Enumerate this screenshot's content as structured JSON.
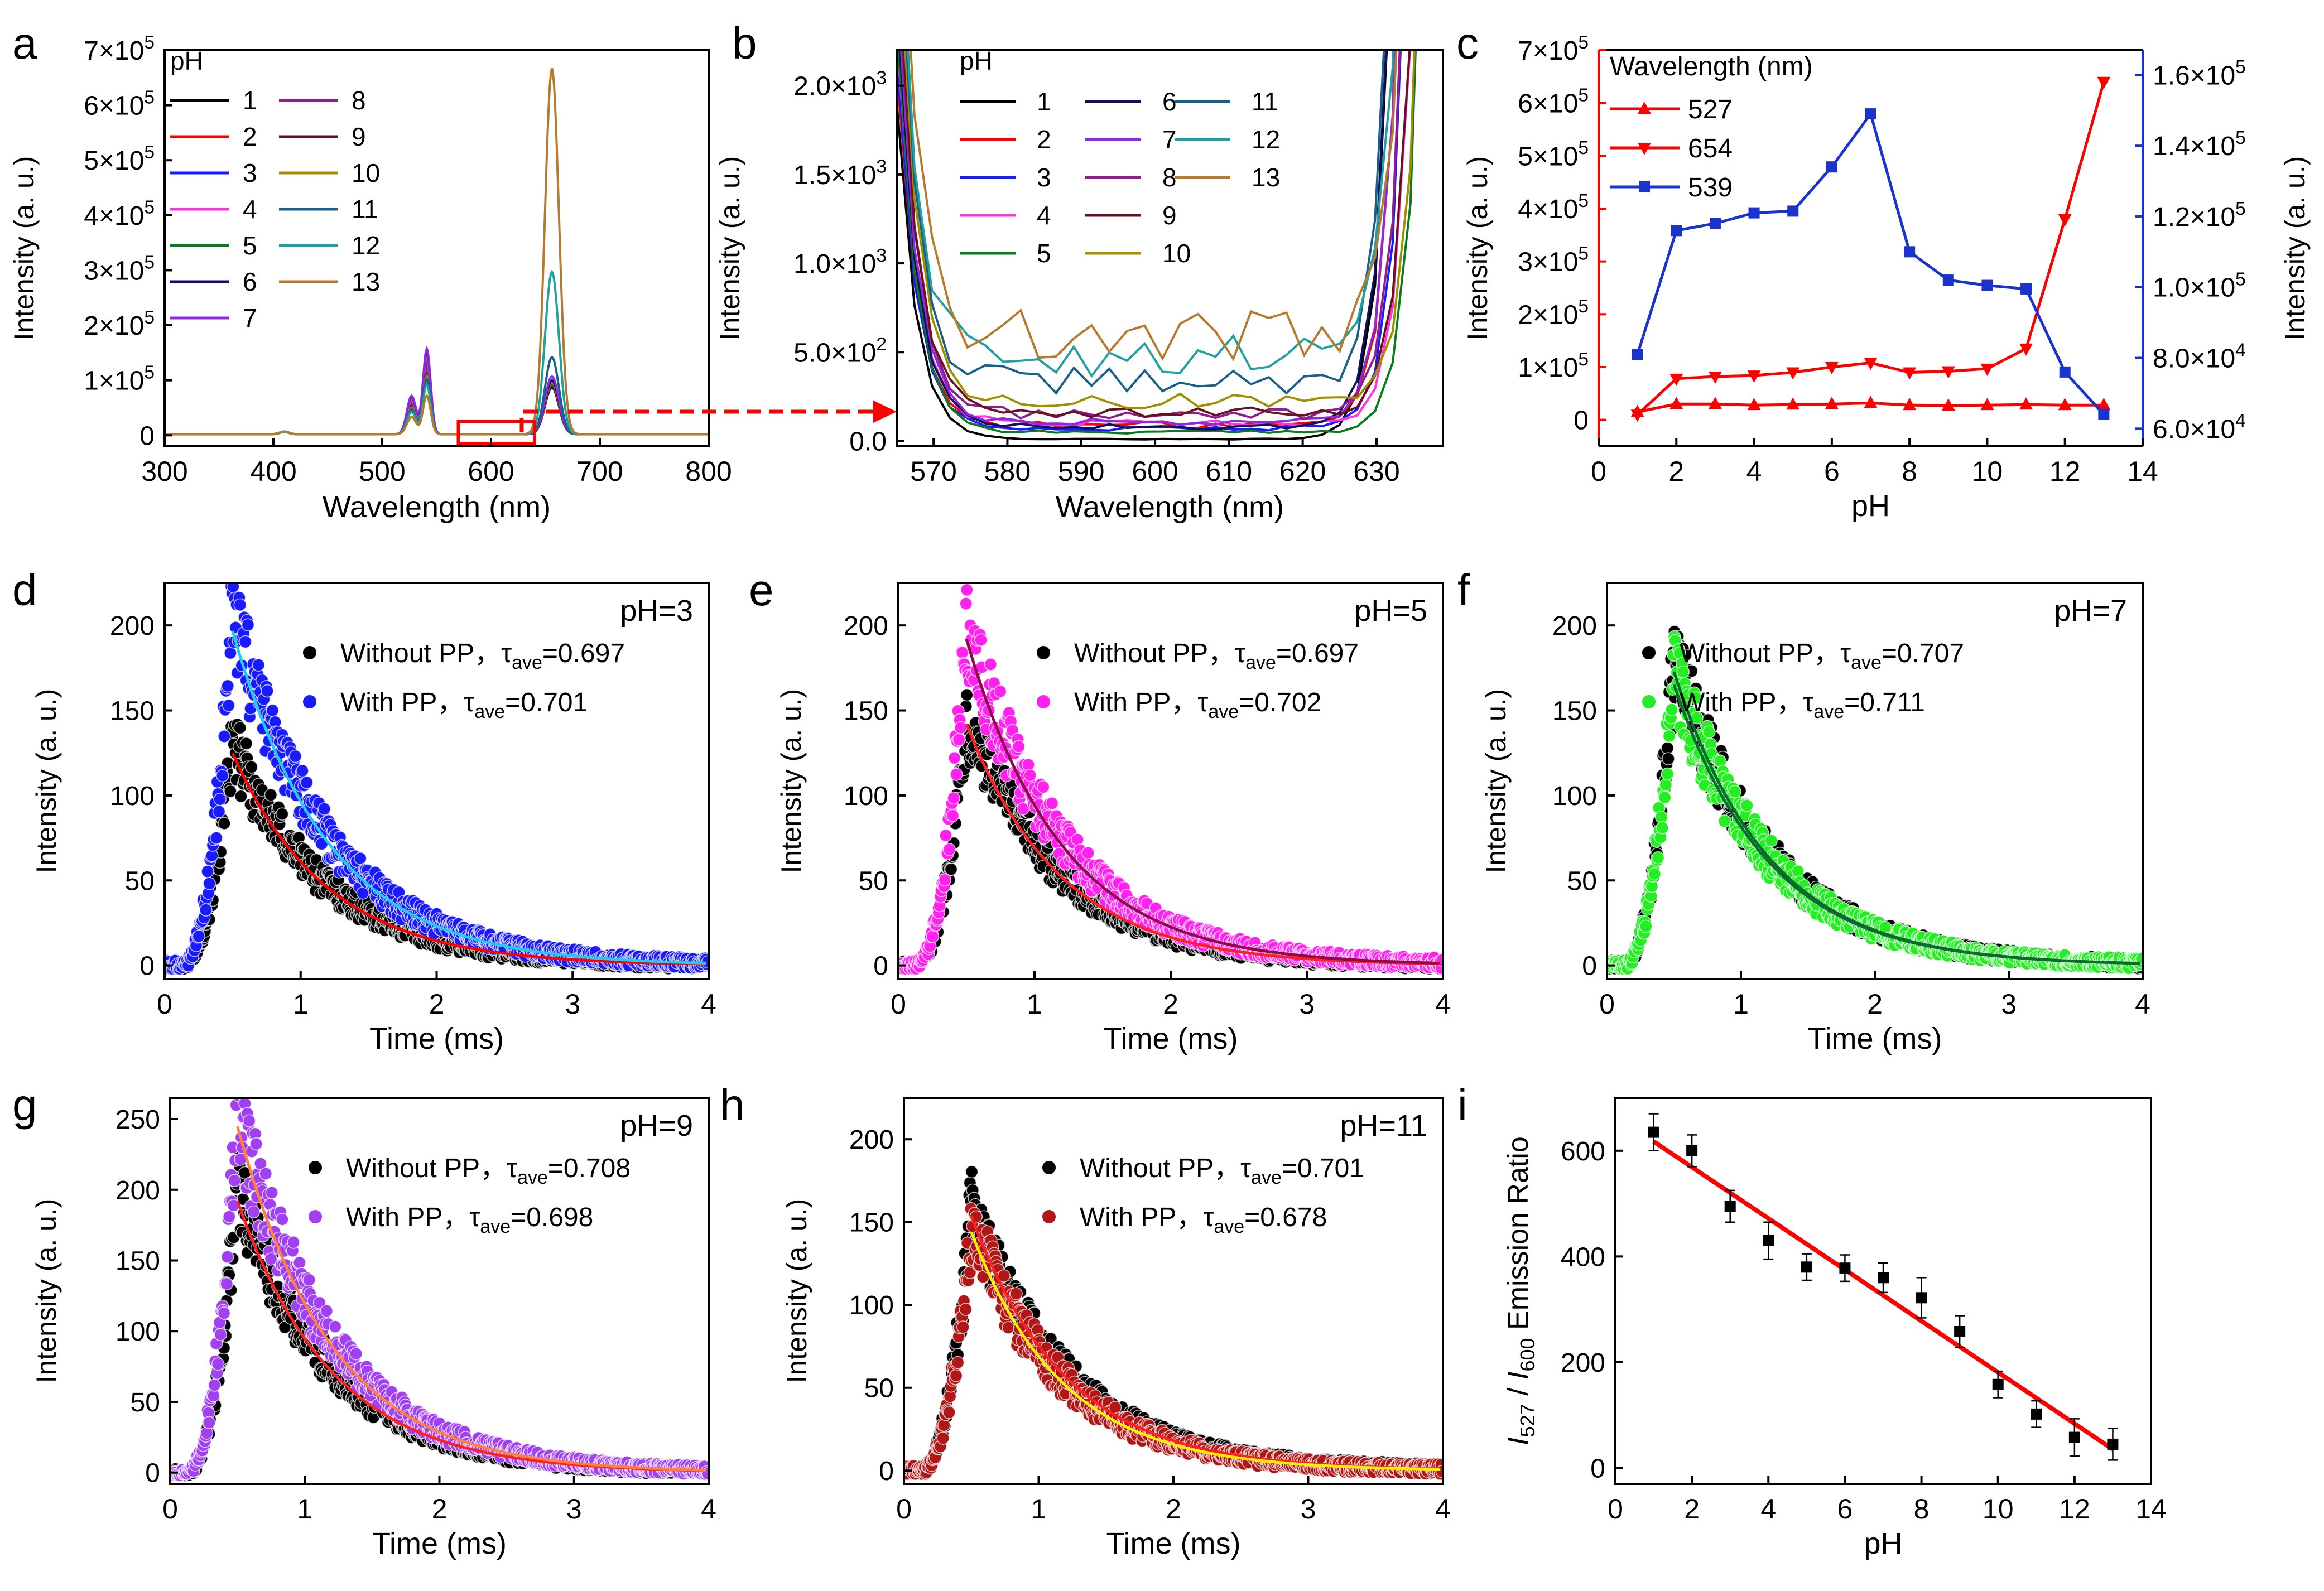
{
  "colors": {
    "ph1": "#000000",
    "ph2": "#ff0000",
    "ph3": "#1a1aff",
    "ph4": "#ff33dd",
    "ph5": "#0a7a20",
    "ph6": "#101060",
    "ph7": "#8c2bdc",
    "ph8": "#8e1d8e",
    "ph9": "#6b1020",
    "ph10": "#a09000",
    "ph11": "#1a5f8a",
    "ph12": "#20a0a0",
    "ph13": "#b47a2e",
    "red": "#ff0000",
    "blue": "#1a33cc",
    "zoom": "#ff0000"
  },
  "chart_data": [
    {
      "id": "a",
      "panel_label": "a",
      "type": "line",
      "xlabel": "Wavelength (nm)",
      "ylabel": "Intensity (a. u.)",
      "xlim": [
        300,
        800
      ],
      "ylim": [
        -20000,
        700000
      ],
      "xticks": [
        "300",
        "400",
        "500",
        "600",
        "700",
        "800"
      ],
      "yticks": [
        {
          "v": 0,
          "b": "0",
          "e": ""
        },
        {
          "v": 100000,
          "b": "1×10",
          "e": "5"
        },
        {
          "v": 200000,
          "b": "2×10",
          "e": "5"
        },
        {
          "v": 300000,
          "b": "3×10",
          "e": "5"
        },
        {
          "v": 400000,
          "b": "4×10",
          "e": "5"
        },
        {
          "v": 500000,
          "b": "5×10",
          "e": "5"
        },
        {
          "v": 600000,
          "b": "6×10",
          "e": "5"
        },
        {
          "v": 700000,
          "b": "7×10",
          "e": "5"
        }
      ],
      "legend_title": "pH",
      "series": [
        {
          "name": "1",
          "peak539": 130000,
          "peak654": 85000
        },
        {
          "name": "2",
          "peak539": 135000,
          "peak654": 90000
        },
        {
          "name": "3",
          "peak539": 140000,
          "peak654": 88000
        },
        {
          "name": "4",
          "peak539": 138000,
          "peak654": 95000
        },
        {
          "name": "5",
          "peak539": 132000,
          "peak654": 92000
        },
        {
          "name": "6",
          "peak539": 150000,
          "peak654": 98000
        },
        {
          "name": "7",
          "peak539": 155000,
          "peak654": 105000
        },
        {
          "name": "8",
          "peak539": 120000,
          "peak654": 90000
        },
        {
          "name": "9",
          "peak539": 110000,
          "peak654": 88000
        },
        {
          "name": "10",
          "peak539": 105000,
          "peak654": 95000
        },
        {
          "name": "11",
          "peak539": 100000,
          "peak654": 140000
        },
        {
          "name": "12",
          "peak539": 90000,
          "peak654": 295000
        },
        {
          "name": "13",
          "peak539": 70000,
          "peak654": 665000
        }
      ],
      "zoom_box_x": [
        570,
        640
      ]
    },
    {
      "id": "b",
      "panel_label": "b",
      "type": "line",
      "xlabel": "Wavelength (nm)",
      "ylabel": "Intensity (a. u.)",
      "xlim": [
        565,
        639
      ],
      "ylim": [
        -30,
        2200
      ],
      "xticks": [
        "570",
        "580",
        "590",
        "600",
        "610",
        "620",
        "630"
      ],
      "yticks": [
        {
          "v": 0,
          "b": "0.0",
          "e": ""
        },
        {
          "v": 500,
          "b": "5.0×10",
          "e": "2"
        },
        {
          "v": 1000,
          "b": "1.0×10",
          "e": "3"
        },
        {
          "v": 1500,
          "b": "1.5×10",
          "e": "3"
        },
        {
          "v": 2000,
          "b": "2.0×10",
          "e": "3"
        }
      ],
      "legend_title": "pH",
      "series": [
        {
          "name": "1",
          "level": 10
        },
        {
          "name": "2",
          "level": 90
        },
        {
          "name": "3",
          "level": 70
        },
        {
          "name": "4",
          "level": 100
        },
        {
          "name": "5",
          "level": 50
        },
        {
          "name": "6",
          "level": 80
        },
        {
          "name": "7",
          "level": 110
        },
        {
          "name": "8",
          "level": 150
        },
        {
          "name": "9",
          "level": 160
        },
        {
          "name": "10",
          "level": 230
        },
        {
          "name": "11",
          "level": 330
        },
        {
          "name": "12",
          "level": 480
        },
        {
          "name": "13",
          "level": 600
        }
      ]
    },
    {
      "id": "c",
      "panel_label": "c",
      "type": "line",
      "xlabel": "pH",
      "ylabel_left": "Intensity (a. u.)",
      "ylabel_right": "Intensity (a. u.)",
      "xlim": [
        0,
        14
      ],
      "ylim_left": [
        -50000,
        700000
      ],
      "ylim_right": [
        55000,
        167000
      ],
      "xticks": [
        "0",
        "2",
        "4",
        "6",
        "8",
        "10",
        "12",
        "14"
      ],
      "yticks_left": [
        {
          "v": 0,
          "b": "0",
          "e": ""
        },
        {
          "v": 100000,
          "b": "1×10",
          "e": "5"
        },
        {
          "v": 200000,
          "b": "2×10",
          "e": "5"
        },
        {
          "v": 300000,
          "b": "3×10",
          "e": "5"
        },
        {
          "v": 400000,
          "b": "4×10",
          "e": "5"
        },
        {
          "v": 500000,
          "b": "5×10",
          "e": "5"
        },
        {
          "v": 600000,
          "b": "6×10",
          "e": "5"
        },
        {
          "v": 700000,
          "b": "7×10",
          "e": "5"
        }
      ],
      "yticks_right": [
        {
          "v": 60000,
          "b": "6.0×10",
          "e": "4"
        },
        {
          "v": 80000,
          "b": "8.0×10",
          "e": "4"
        },
        {
          "v": 100000,
          "b": "1.0×10",
          "e": "5"
        },
        {
          "v": 120000,
          "b": "1.2×10",
          "e": "5"
        },
        {
          "v": 140000,
          "b": "1.4×10",
          "e": "5"
        },
        {
          "v": 160000,
          "b": "1.6×10",
          "e": "5"
        }
      ],
      "legend_title": "Wavelength (nm)",
      "x": [
        1,
        2,
        3,
        4,
        5,
        6,
        7,
        8,
        9,
        10,
        11,
        12,
        13
      ],
      "series": [
        {
          "name": "527",
          "axis": "left",
          "marker": "up",
          "values": [
            15000,
            30000,
            30000,
            28000,
            29000,
            30000,
            32000,
            28000,
            27000,
            28000,
            29000,
            28000,
            28000
          ]
        },
        {
          "name": "654",
          "axis": "left",
          "marker": "down",
          "values": [
            10000,
            78000,
            82000,
            84000,
            90000,
            100000,
            108000,
            90000,
            92000,
            97000,
            135000,
            380000,
            640000
          ]
        },
        {
          "name": "539",
          "axis": "right",
          "marker": "square",
          "values": [
            81000,
            116000,
            118000,
            121000,
            121500,
            134000,
            149000,
            110000,
            102000,
            100500,
            99500,
            76000,
            64000
          ]
        }
      ]
    },
    {
      "id": "d",
      "panel_label": "d",
      "type": "scatter",
      "annotation": "pH=3",
      "xlabel": "Time (ms)",
      "ylabel": "Intensity (a. u.)",
      "xlim": [
        0,
        4
      ],
      "ylim": [
        -8,
        225
      ],
      "xticks": [
        "0",
        "1",
        "2",
        "3",
        "4"
      ],
      "yticks": [
        "0",
        "50",
        "100",
        "150",
        "200"
      ],
      "series": [
        {
          "label": "Without PP，τ",
          "sub": "ave",
          "val": "=0.697",
          "peak": 130,
          "tau": 0.697,
          "color": "#000000",
          "fit": "#ff0000"
        },
        {
          "label": "With PP，τ",
          "sub": "ave",
          "val": "=0.701",
          "peak": 205,
          "tau": 0.701,
          "color": "#1a1aff",
          "fit": "#22ccee"
        }
      ]
    },
    {
      "id": "e",
      "panel_label": "e",
      "type": "scatter",
      "annotation": "pH=5",
      "xlabel": "Time (ms)",
      "ylabel": "Intensity (a. u.)",
      "xlim": [
        0,
        4
      ],
      "ylim": [
        -8,
        225
      ],
      "xticks": [
        "0",
        "1",
        "2",
        "3",
        "4"
      ],
      "yticks": [
        "0",
        "50",
        "100",
        "150",
        "200"
      ],
      "series": [
        {
          "label": "Without PP，τ",
          "sub": "ave",
          "val": "=0.697",
          "peak": 148,
          "tau": 0.697,
          "color": "#000000",
          "fit": "#ff2020"
        },
        {
          "label": "With PP，τ",
          "sub": "ave",
          "val": "=0.702",
          "peak": 200,
          "tau": 0.702,
          "color": "#ff22ee",
          "fit": "#8b0a4a"
        }
      ]
    },
    {
      "id": "f",
      "panel_label": "f",
      "type": "scatter",
      "annotation": "pH=7",
      "xlabel": "Time (ms)",
      "ylabel": "Intensity (a. u.)",
      "xlim": [
        0,
        4
      ],
      "ylim": [
        -8,
        225
      ],
      "xticks": [
        "0",
        "1",
        "2",
        "3",
        "4"
      ],
      "yticks": [
        "0",
        "50",
        "100",
        "150",
        "200"
      ],
      "series": [
        {
          "label": "Without PP，τ",
          "sub": "ave",
          "val": "=0.707",
          "peak": 180,
          "tau": 0.707,
          "color": "#000000",
          "fit": "#0b6b2e"
        },
        {
          "label": "With PP，τ",
          "sub": "ave",
          "val": "=0.711",
          "peak": 172,
          "tau": 0.711,
          "color": "#22ee22",
          "fit": "#0b6b2e"
        }
      ]
    },
    {
      "id": "g",
      "panel_label": "g",
      "type": "scatter",
      "annotation": "pH=9",
      "xlabel": "Time (ms)",
      "ylabel": "Intensity (a. u.)",
      "xlim": [
        0,
        4
      ],
      "ylim": [
        -8,
        265
      ],
      "xticks": [
        "0",
        "1",
        "2",
        "3",
        "4"
      ],
      "yticks": [
        "0",
        "50",
        "100",
        "150",
        "200",
        "250"
      ],
      "series": [
        {
          "label": "Without PP，τ",
          "sub": "ave",
          "val": "=0.708",
          "peak": 200,
          "tau": 0.708,
          "color": "#000000",
          "fit": "#ff2020"
        },
        {
          "label": "With PP，τ",
          "sub": "ave",
          "val": "=0.698",
          "peak": 255,
          "tau": 0.698,
          "color": "#a040f0",
          "fit": "#ff8040"
        }
      ]
    },
    {
      "id": "h",
      "panel_label": "h",
      "type": "scatter",
      "annotation": "pH=11",
      "xlabel": "Time (ms)",
      "ylabel": "Intensity (a. u.)",
      "xlim": [
        0,
        4
      ],
      "ylim": [
        -8,
        225
      ],
      "xticks": [
        "0",
        "1",
        "2",
        "3",
        "4"
      ],
      "yticks": [
        "0",
        "50",
        "100",
        "150",
        "200"
      ],
      "series": [
        {
          "label": "Without PP，τ",
          "sub": "ave",
          "val": "=0.701",
          "peak": 160,
          "tau": 0.701,
          "color": "#000000",
          "fit": "#ff2020"
        },
        {
          "label": "With PP，τ",
          "sub": "ave",
          "val": "=0.678",
          "peak": 150,
          "tau": 0.678,
          "color": "#b01818",
          "fit": "#ffee00"
        }
      ]
    },
    {
      "id": "i",
      "panel_label": "i",
      "type": "scatter",
      "xlabel": "pH",
      "ylabel_parts": [
        {
          "t": "I",
          "it": true
        },
        {
          "t": "527",
          "sub": true
        },
        {
          "t": " / "
        },
        {
          "t": "I",
          "it": true
        },
        {
          "t": "600",
          "sub": true
        },
        {
          "t": " Emission Ratio"
        }
      ],
      "xlim": [
        0,
        14
      ],
      "ylim": [
        -30,
        700
      ],
      "xticks": [
        "0",
        "2",
        "4",
        "6",
        "8",
        "10",
        "12",
        "14"
      ],
      "yticks": [
        "0",
        "200",
        "400",
        "600"
      ],
      "x": [
        1,
        2,
        3,
        4,
        5,
        6,
        7,
        8,
        9,
        10,
        11,
        12,
        13
      ],
      "values": [
        635,
        600,
        495,
        430,
        380,
        378,
        360,
        322,
        258,
        158,
        102,
        58,
        45
      ],
      "errors": [
        35,
        30,
        30,
        35,
        25,
        25,
        28,
        38,
        30,
        25,
        25,
        35,
        30
      ],
      "fit": {
        "slope": -48.5,
        "intercept": 666
      }
    }
  ]
}
